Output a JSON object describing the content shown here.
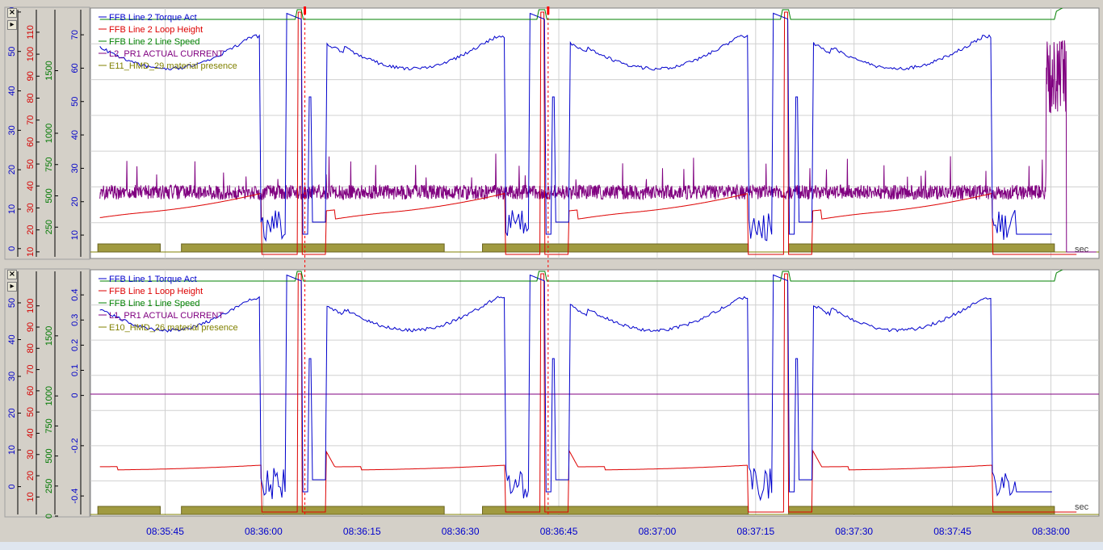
{
  "chart_data": [
    {
      "type": "line",
      "title": "",
      "legend_placement": "top-left",
      "axes": [
        {
          "color": "#0000c8",
          "ticks": [
            0,
            10,
            20,
            30,
            40,
            50,
            60
          ],
          "range": [
            -2.5,
            61
          ]
        },
        {
          "color": "#d40000",
          "ticks": [
            10,
            20,
            30,
            40,
            50,
            60,
            70,
            80,
            90,
            100,
            110
          ],
          "range": [
            7,
            121
          ]
        },
        {
          "color": "#007800",
          "ticks": [
            250,
            500,
            750,
            1000,
            1500
          ],
          "range": [
            0,
            2000
          ]
        },
        {
          "color": "#0000c8",
          "ticks": [
            10,
            20,
            30,
            40,
            50,
            60,
            70
          ],
          "range": [
            3,
            78
          ]
        }
      ],
      "series": [
        {
          "name": "FFB Line 2 Torque Act",
          "color": "#0000cc"
        },
        {
          "name": "FFB Line 2 Loop Height",
          "color": "#dd0000"
        },
        {
          "name": "FFB Line 2 Line Speed",
          "color": "#008000"
        },
        {
          "name": "L2_PR1 ACTUAL CURRENT",
          "color": "#800080"
        },
        {
          "name": "E11_HMD_29 material presence",
          "color": "#808000"
        }
      ],
      "x_unit": "sec"
    },
    {
      "type": "line",
      "title": "",
      "legend_placement": "top-left",
      "axes": [
        {
          "color": "#0000c8",
          "ticks": [
            0,
            10,
            20,
            30,
            40,
            50
          ],
          "range": [
            -8,
            59
          ]
        },
        {
          "color": "#d40000",
          "ticks": [
            10,
            20,
            30,
            40,
            50,
            60,
            70,
            80,
            90,
            100
          ],
          "range": [
            1,
            117
          ]
        },
        {
          "color": "#007800",
          "ticks": [
            0,
            250,
            500,
            750,
            1000,
            1500
          ],
          "range": [
            0,
            2050
          ]
        },
        {
          "color": "#0000c8",
          "ticks": [
            -0.4,
            -0.2,
            0,
            0.1,
            0.2,
            0.3,
            0.4
          ],
          "range": [
            -0.48,
            0.5
          ]
        }
      ],
      "series": [
        {
          "name": "FFB Line 1 Torque Act",
          "color": "#0000cc"
        },
        {
          "name": "FFB Line 1 Loop Height",
          "color": "#dd0000"
        },
        {
          "name": "FFB Line 1 Line Speed",
          "color": "#008000"
        },
        {
          "name": "L1_PR1 ACTUAL CURRENT",
          "color": "#800080"
        },
        {
          "name": "E10_HMD_26 material presence",
          "color": "#808000"
        }
      ],
      "x_unit": "sec"
    }
  ],
  "time_axis": {
    "ticks": [
      "08:35:45",
      "08:36:00",
      "08:36:15",
      "08:36:30",
      "08:36:45",
      "08:37:00",
      "08:37:15",
      "08:37:30",
      "08:37:45",
      "08:38:00"
    ],
    "range_seconds": [
      -0.7,
      30.35
    ]
  },
  "cursors": [
    9.52,
    21.6
  ],
  "presence_segments": [
    [
      -0.6,
      2.5
    ],
    [
      3.55,
      16.6
    ],
    [
      18.5,
      31.7
    ],
    [
      33.7,
      46.9
    ]
  ],
  "controls": {
    "close_label": "×",
    "arrow_label": "▸"
  }
}
